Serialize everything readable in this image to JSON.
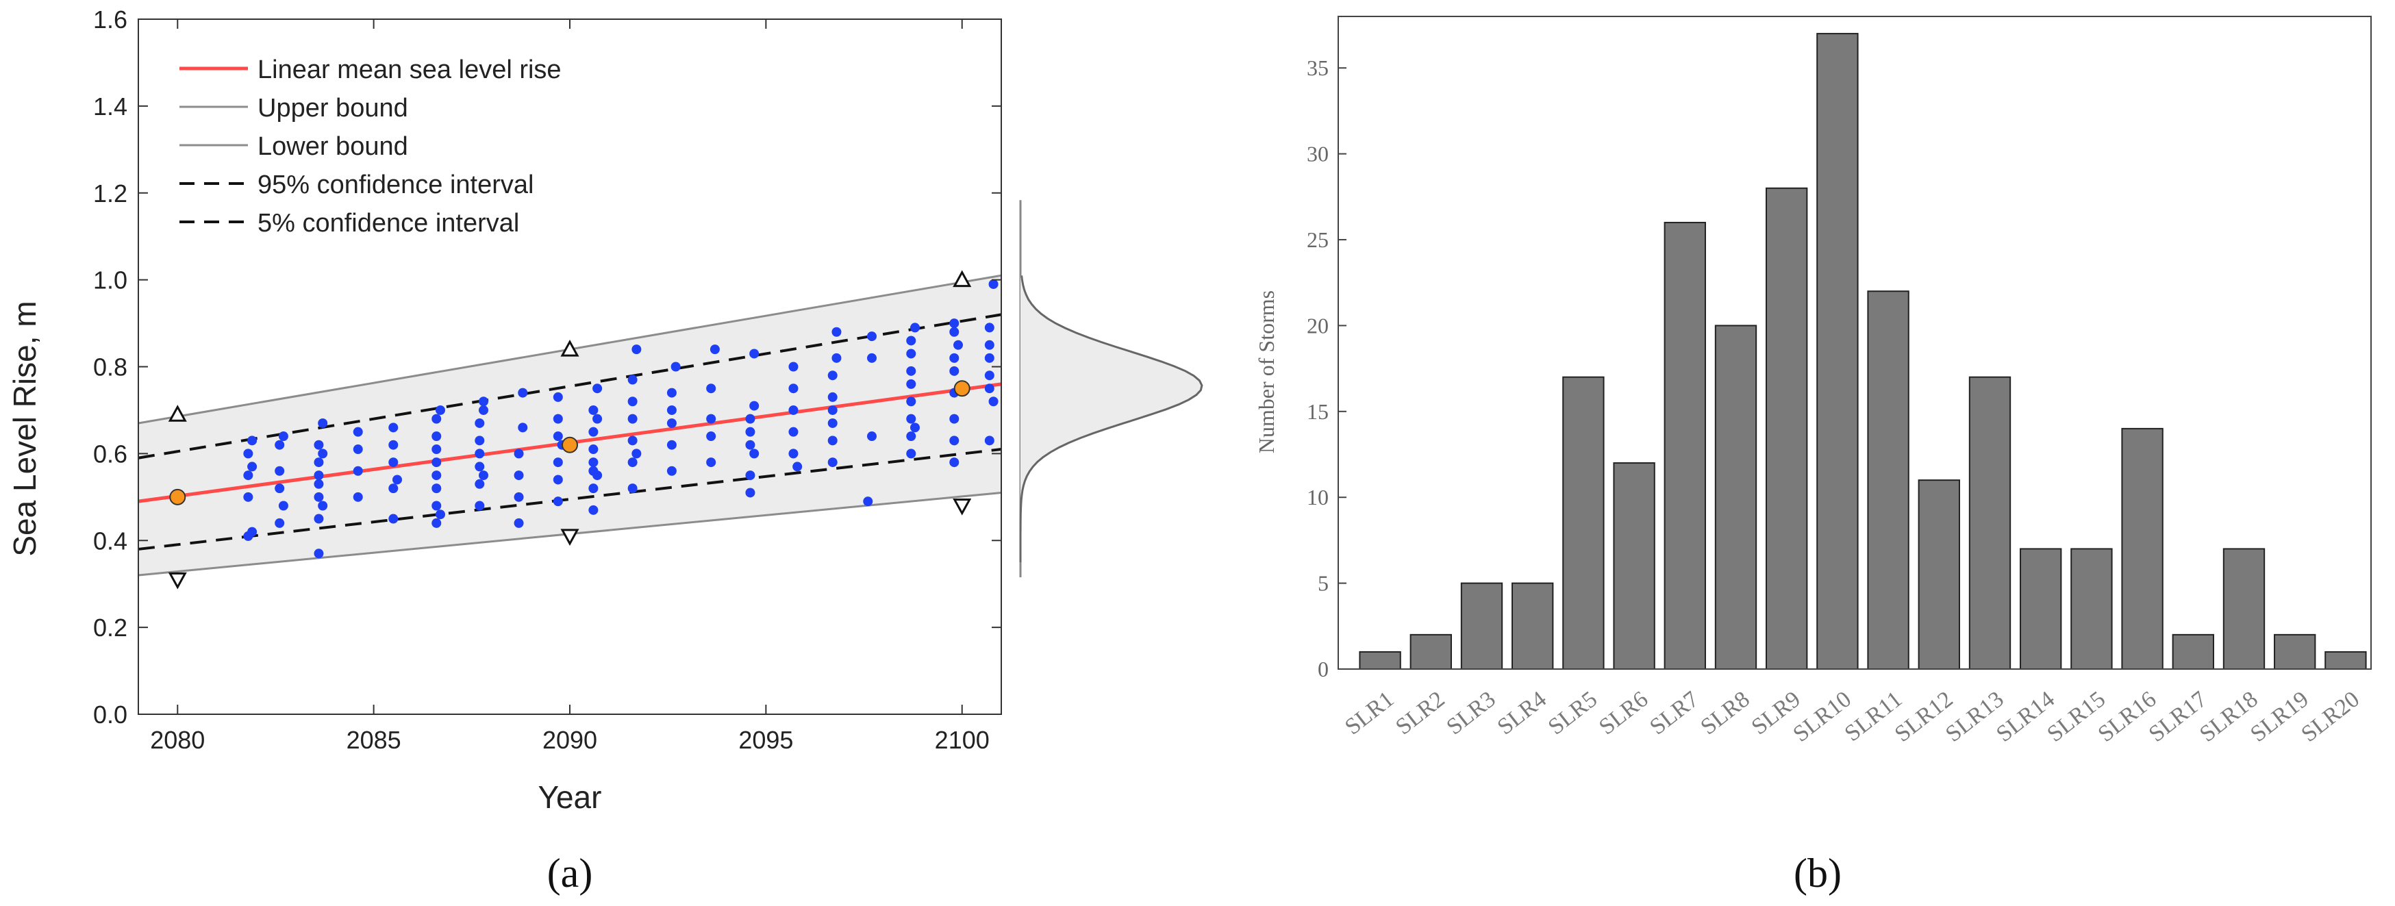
{
  "panel_labels": {
    "a": "(a)",
    "b": "(b)"
  },
  "chart_data": [
    {
      "type": "scatter",
      "xlabel": "Year",
      "ylabel": "Sea Level Rise, m",
      "xlim": [
        2079,
        2101
      ],
      "ylim": [
        0,
        1.6
      ],
      "xticks": [
        2080,
        2085,
        2090,
        2095,
        2100
      ],
      "yticks": [
        "0.0",
        "0.2",
        "0.4",
        "0.6",
        "0.8",
        "1.0",
        "1.2",
        "1.4",
        "1.6"
      ],
      "grid": false,
      "legend_position": "top-left",
      "legend": [
        {
          "label": "Linear mean sea level rise",
          "style": "solid",
          "color": "#ff4a4a"
        },
        {
          "label": "Upper bound",
          "style": "solid",
          "color": "#8c8c8c"
        },
        {
          "label": "Lower bound",
          "style": "solid",
          "color": "#8c8c8c"
        },
        {
          "label": "95% confidence interval",
          "style": "dashed",
          "color": "#111111"
        },
        {
          "label": "5% confidence interval",
          "style": "dashed",
          "color": "#111111"
        }
      ],
      "mean_line": {
        "x": [
          2079,
          2101
        ],
        "y": [
          0.49,
          0.76
        ],
        "color": "#ff4a4a"
      },
      "upper_bound": {
        "x": [
          2079,
          2101
        ],
        "y": [
          0.67,
          1.01
        ]
      },
      "lower_bound": {
        "x": [
          2079,
          2101
        ],
        "y": [
          0.32,
          0.51
        ]
      },
      "ci_95": {
        "x": [
          2079,
          2101
        ],
        "y": [
          0.59,
          0.92
        ]
      },
      "ci_5": {
        "x": [
          2079,
          2101
        ],
        "y": [
          0.38,
          0.61
        ]
      },
      "anchor_points": {
        "x": [
          2080,
          2090,
          2100
        ],
        "y": [
          0.5,
          0.62,
          0.75
        ],
        "color": "#f7941d"
      },
      "upper_markers": {
        "x": [
          2080,
          2090,
          2100
        ],
        "y": [
          0.69,
          0.84,
          1.0
        ]
      },
      "lower_markers": {
        "x": [
          2080,
          2090,
          2100
        ],
        "y": [
          0.31,
          0.41,
          0.48
        ]
      },
      "samples": {
        "color": "#1f3ff5",
        "points": [
          [
            2081.8,
            0.41
          ],
          [
            2081.8,
            0.5
          ],
          [
            2081.8,
            0.55
          ],
          [
            2081.8,
            0.6
          ],
          [
            2081.9,
            0.63
          ],
          [
            2081.9,
            0.42
          ],
          [
            2081.9,
            0.57
          ],
          [
            2082.6,
            0.44
          ],
          [
            2082.6,
            0.52
          ],
          [
            2082.6,
            0.56
          ],
          [
            2082.6,
            0.62
          ],
          [
            2082.7,
            0.48
          ],
          [
            2082.7,
            0.64
          ],
          [
            2083.6,
            0.37
          ],
          [
            2083.6,
            0.45
          ],
          [
            2083.6,
            0.5
          ],
          [
            2083.6,
            0.53
          ],
          [
            2083.6,
            0.55
          ],
          [
            2083.6,
            0.58
          ],
          [
            2083.6,
            0.62
          ],
          [
            2083.7,
            0.67
          ],
          [
            2083.7,
            0.48
          ],
          [
            2083.7,
            0.6
          ],
          [
            2084.6,
            0.5
          ],
          [
            2084.6,
            0.56
          ],
          [
            2084.6,
            0.61
          ],
          [
            2084.6,
            0.65
          ],
          [
            2085.5,
            0.45
          ],
          [
            2085.5,
            0.52
          ],
          [
            2085.5,
            0.58
          ],
          [
            2085.5,
            0.62
          ],
          [
            2085.5,
            0.66
          ],
          [
            2085.6,
            0.54
          ],
          [
            2086.6,
            0.44
          ],
          [
            2086.6,
            0.48
          ],
          [
            2086.6,
            0.52
          ],
          [
            2086.6,
            0.55
          ],
          [
            2086.6,
            0.58
          ],
          [
            2086.6,
            0.61
          ],
          [
            2086.6,
            0.64
          ],
          [
            2086.6,
            0.68
          ],
          [
            2086.7,
            0.7
          ],
          [
            2086.7,
            0.46
          ],
          [
            2087.7,
            0.48
          ],
          [
            2087.7,
            0.53
          ],
          [
            2087.7,
            0.57
          ],
          [
            2087.7,
            0.6
          ],
          [
            2087.7,
            0.63
          ],
          [
            2087.7,
            0.67
          ],
          [
            2087.8,
            0.7
          ],
          [
            2087.8,
            0.72
          ],
          [
            2087.8,
            0.55
          ],
          [
            2088.7,
            0.44
          ],
          [
            2088.7,
            0.5
          ],
          [
            2088.7,
            0.55
          ],
          [
            2088.7,
            0.6
          ],
          [
            2088.8,
            0.66
          ],
          [
            2088.8,
            0.74
          ],
          [
            2089.7,
            0.49
          ],
          [
            2089.7,
            0.54
          ],
          [
            2089.7,
            0.58
          ],
          [
            2089.7,
            0.64
          ],
          [
            2089.7,
            0.68
          ],
          [
            2089.7,
            0.73
          ],
          [
            2089.8,
            0.62
          ],
          [
            2090.6,
            0.47
          ],
          [
            2090.6,
            0.52
          ],
          [
            2090.6,
            0.56
          ],
          [
            2090.6,
            0.58
          ],
          [
            2090.6,
            0.61
          ],
          [
            2090.6,
            0.65
          ],
          [
            2090.6,
            0.7
          ],
          [
            2090.7,
            0.75
          ],
          [
            2090.7,
            0.55
          ],
          [
            2090.7,
            0.68
          ],
          [
            2091.6,
            0.52
          ],
          [
            2091.6,
            0.58
          ],
          [
            2091.6,
            0.63
          ],
          [
            2091.6,
            0.68
          ],
          [
            2091.6,
            0.72
          ],
          [
            2091.6,
            0.77
          ],
          [
            2091.7,
            0.84
          ],
          [
            2091.7,
            0.6
          ],
          [
            2092.6,
            0.56
          ],
          [
            2092.6,
            0.62
          ],
          [
            2092.6,
            0.67
          ],
          [
            2092.6,
            0.7
          ],
          [
            2092.6,
            0.74
          ],
          [
            2092.7,
            0.8
          ],
          [
            2093.6,
            0.58
          ],
          [
            2093.6,
            0.64
          ],
          [
            2093.6,
            0.68
          ],
          [
            2093.6,
            0.75
          ],
          [
            2093.7,
            0.84
          ],
          [
            2094.6,
            0.51
          ],
          [
            2094.6,
            0.55
          ],
          [
            2094.6,
            0.62
          ],
          [
            2094.6,
            0.65
          ],
          [
            2094.6,
            0.68
          ],
          [
            2094.7,
            0.71
          ],
          [
            2094.7,
            0.83
          ],
          [
            2094.7,
            0.6
          ],
          [
            2095.7,
            0.6
          ],
          [
            2095.7,
            0.65
          ],
          [
            2095.7,
            0.7
          ],
          [
            2095.7,
            0.75
          ],
          [
            2095.7,
            0.8
          ],
          [
            2095.8,
            0.57
          ],
          [
            2096.7,
            0.58
          ],
          [
            2096.7,
            0.63
          ],
          [
            2096.7,
            0.67
          ],
          [
            2096.7,
            0.7
          ],
          [
            2096.7,
            0.73
          ],
          [
            2096.7,
            0.78
          ],
          [
            2096.8,
            0.82
          ],
          [
            2096.8,
            0.88
          ],
          [
            2097.6,
            0.49
          ],
          [
            2097.7,
            0.64
          ],
          [
            2097.7,
            0.82
          ],
          [
            2097.7,
            0.87
          ],
          [
            2098.7,
            0.6
          ],
          [
            2098.7,
            0.64
          ],
          [
            2098.7,
            0.68
          ],
          [
            2098.7,
            0.72
          ],
          [
            2098.7,
            0.76
          ],
          [
            2098.7,
            0.79
          ],
          [
            2098.7,
            0.83
          ],
          [
            2098.7,
            0.86
          ],
          [
            2098.8,
            0.89
          ],
          [
            2098.8,
            0.66
          ],
          [
            2099.8,
            0.58
          ],
          [
            2099.8,
            0.63
          ],
          [
            2099.8,
            0.68
          ],
          [
            2099.8,
            0.74
          ],
          [
            2099.8,
            0.79
          ],
          [
            2099.8,
            0.82
          ],
          [
            2099.8,
            0.88
          ],
          [
            2099.8,
            0.9
          ],
          [
            2099.9,
            0.85
          ],
          [
            2100.7,
            0.63
          ],
          [
            2100.7,
            0.75
          ],
          [
            2100.7,
            0.78
          ],
          [
            2100.7,
            0.82
          ],
          [
            2100.7,
            0.85
          ],
          [
            2100.7,
            0.89
          ],
          [
            2100.8,
            0.99
          ],
          [
            2100.8,
            0.72
          ]
        ]
      },
      "distribution_curve": {
        "mean": 0.755,
        "sd": 0.08,
        "y_range": [
          0.35,
          1.01
        ]
      }
    },
    {
      "type": "bar",
      "xlabel": "",
      "ylabel": "Number of Storms",
      "ylim": [
        0,
        38
      ],
      "yticks": [
        "0",
        "5",
        "10",
        "15",
        "20",
        "25",
        "30",
        "35"
      ],
      "bar_color": "#7a7a7a",
      "categories": [
        "SLR1",
        "SLR2",
        "SLR3",
        "SLR4",
        "SLR5",
        "SLR6",
        "SLR7",
        "SLR8",
        "SLR9",
        "SLR10",
        "SLR11",
        "SLR12",
        "SLR13",
        "SLR14",
        "SLR15",
        "SLR16",
        "SLR17",
        "SLR18",
        "SLR19",
        "SLR20"
      ],
      "values": [
        1,
        2,
        5,
        5,
        17,
        12,
        26,
        20,
        28,
        37,
        22,
        11,
        17,
        7,
        7,
        14,
        2,
        7,
        2,
        1
      ]
    }
  ]
}
